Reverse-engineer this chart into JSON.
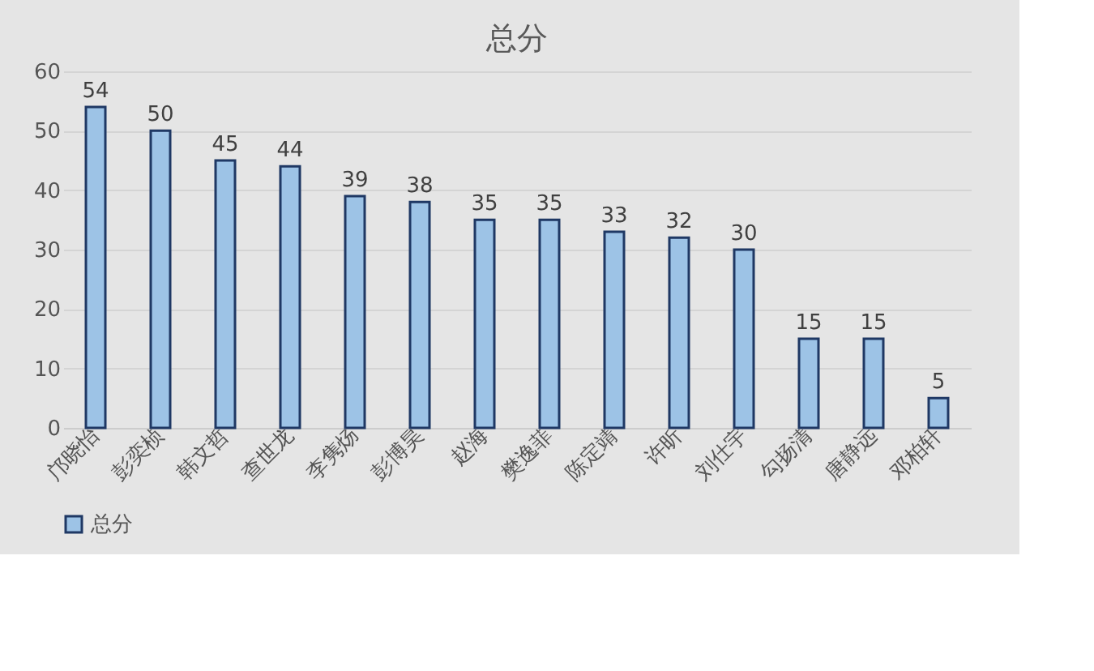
{
  "chart_data": {
    "type": "bar",
    "title": "总分",
    "categories": [
      "邝晓怡",
      "彭奕桢",
      "韩文哲",
      "查世龙",
      "李隽炀",
      "彭博昊",
      "赵海",
      "樊逸菲",
      "陈定靖",
      "许昕",
      "刘仕宇",
      "勾扬清",
      "唐静远",
      "邓柏轩"
    ],
    "series": [
      {
        "name": "总分",
        "color": "#9dc3e6",
        "values": [
          54,
          50,
          45,
          44,
          39,
          38,
          35,
          35,
          33,
          32,
          30,
          15,
          15,
          5
        ]
      }
    ],
    "ylim": [
      0,
      60
    ],
    "yticks": [
      0,
      10,
      20,
      30,
      40,
      50,
      60
    ],
    "grid": "y",
    "legend": "bottom",
    "data_labels": true
  }
}
